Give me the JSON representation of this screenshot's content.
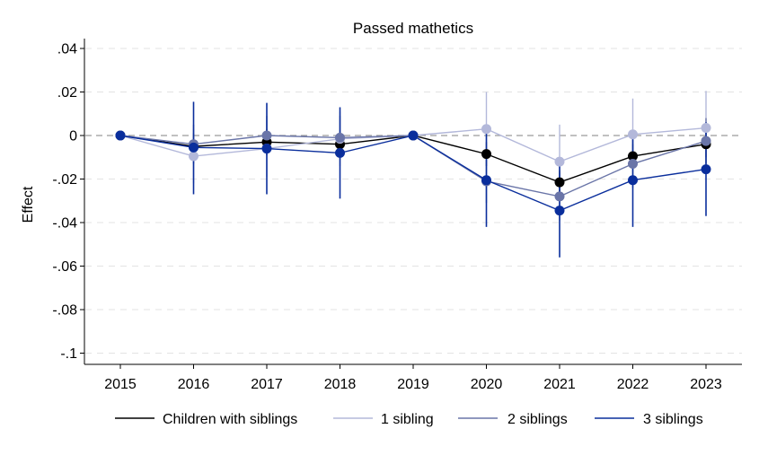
{
  "chart_data": {
    "type": "line",
    "title": "Passed mathetics",
    "xlabel": "",
    "ylabel": "Effect",
    "x": [
      2015,
      2016,
      2017,
      2018,
      2019,
      2020,
      2021,
      2022,
      2023
    ],
    "x_tick_labels": [
      "2015",
      "2016",
      "2017",
      "2018",
      "2019",
      "2020",
      "2021",
      "2022",
      "2023"
    ],
    "ylim": [
      -0.1,
      0.04
    ],
    "y_ticks": [
      0.04,
      0.02,
      0,
      -0.02,
      -0.04,
      -0.06,
      -0.08,
      -0.1
    ],
    "y_tick_labels": [
      ".04",
      ".02",
      "0",
      "-.02",
      "-.04",
      "-.06",
      "-.08",
      "-.1"
    ],
    "reference_line": 0,
    "grid": "horizontal dashed",
    "legend_position": "bottom",
    "series": [
      {
        "name": "Children with siblings",
        "color": "#000000",
        "values": [
          0,
          -0.005,
          -0.003,
          -0.004,
          0,
          -0.0085,
          -0.0215,
          -0.0095,
          -0.004
        ],
        "ci_low": [
          0,
          -0.011,
          -0.009,
          -0.009,
          0,
          -0.014,
          -0.027,
          -0.015,
          -0.01
        ],
        "ci_high": [
          0,
          0.001,
          0.003,
          0.001,
          0,
          -0.003,
          -0.016,
          -0.004,
          0.002
        ]
      },
      {
        "name": "1 sibling",
        "color": "#b3b8da",
        "values": [
          0,
          -0.0095,
          -0.006,
          -0.0015,
          0,
          0.003,
          -0.012,
          0.0005,
          0.0035
        ],
        "ci_low": [
          0,
          -0.022,
          -0.019,
          -0.014,
          0,
          -0.014,
          -0.029,
          -0.016,
          -0.013
        ],
        "ci_high": [
          0,
          0.003,
          0.007,
          0.011,
          0,
          0.02,
          0.005,
          0.017,
          0.0205
        ]
      },
      {
        "name": "2 siblings",
        "color": "#6a75a8",
        "values": [
          0,
          -0.004,
          0,
          -0.001,
          0,
          -0.021,
          -0.028,
          -0.013,
          -0.0025
        ],
        "ci_low": [
          0,
          -0.013,
          -0.009,
          -0.011,
          0,
          -0.031,
          -0.039,
          -0.024,
          -0.013
        ],
        "ci_high": [
          0,
          0.005,
          0.009,
          0.009,
          0,
          -0.011,
          -0.017,
          -0.002,
          0.008
        ]
      },
      {
        "name": "3 siblings",
        "color": "#0a2e9c",
        "values": [
          0,
          -0.0055,
          -0.006,
          -0.008,
          0,
          -0.0205,
          -0.0345,
          -0.0205,
          -0.0155
        ],
        "ci_low": [
          0,
          -0.027,
          -0.027,
          -0.029,
          0,
          -0.042,
          -0.056,
          -0.042,
          -0.037
        ],
        "ci_high": [
          0,
          0.0155,
          0.015,
          0.013,
          0,
          0.001,
          -0.013,
          0.001,
          0.006
        ]
      }
    ]
  }
}
